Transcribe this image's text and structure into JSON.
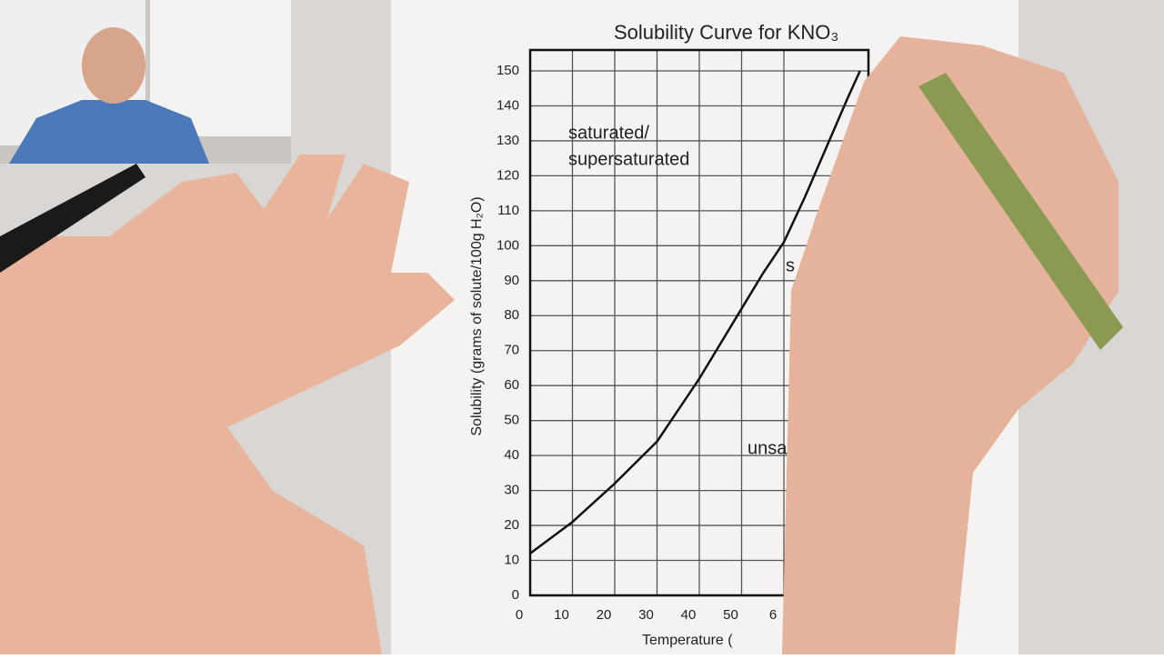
{
  "chart_data": {
    "type": "line",
    "title": "Solubility Curve for KNO₃",
    "y_label": "Solubility (grams of solute/100g H₂O)",
    "x_label": "Temperature (",
    "annotations": [
      "saturated/",
      "supersaturated",
      "s",
      "unsa"
    ],
    "x": [
      0,
      10,
      20,
      30,
      40,
      50,
      55,
      60,
      65,
      70,
      75,
      78
    ],
    "values": [
      12,
      21,
      32,
      44,
      62,
      82,
      92,
      101,
      114,
      128,
      142,
      150
    ],
    "color": "#111111",
    "xlim": [
      0,
      80
    ],
    "xticks": [
      0,
      10,
      20,
      30,
      40,
      50,
      {
        "value": 60,
        "label": "6"
      }
    ],
    "ylim": [
      0,
      150
    ],
    "yticks": [
      0,
      10,
      20,
      30,
      40,
      50,
      60,
      70,
      80,
      90,
      100,
      110,
      120,
      130,
      140,
      150
    ],
    "grid": true
  }
}
